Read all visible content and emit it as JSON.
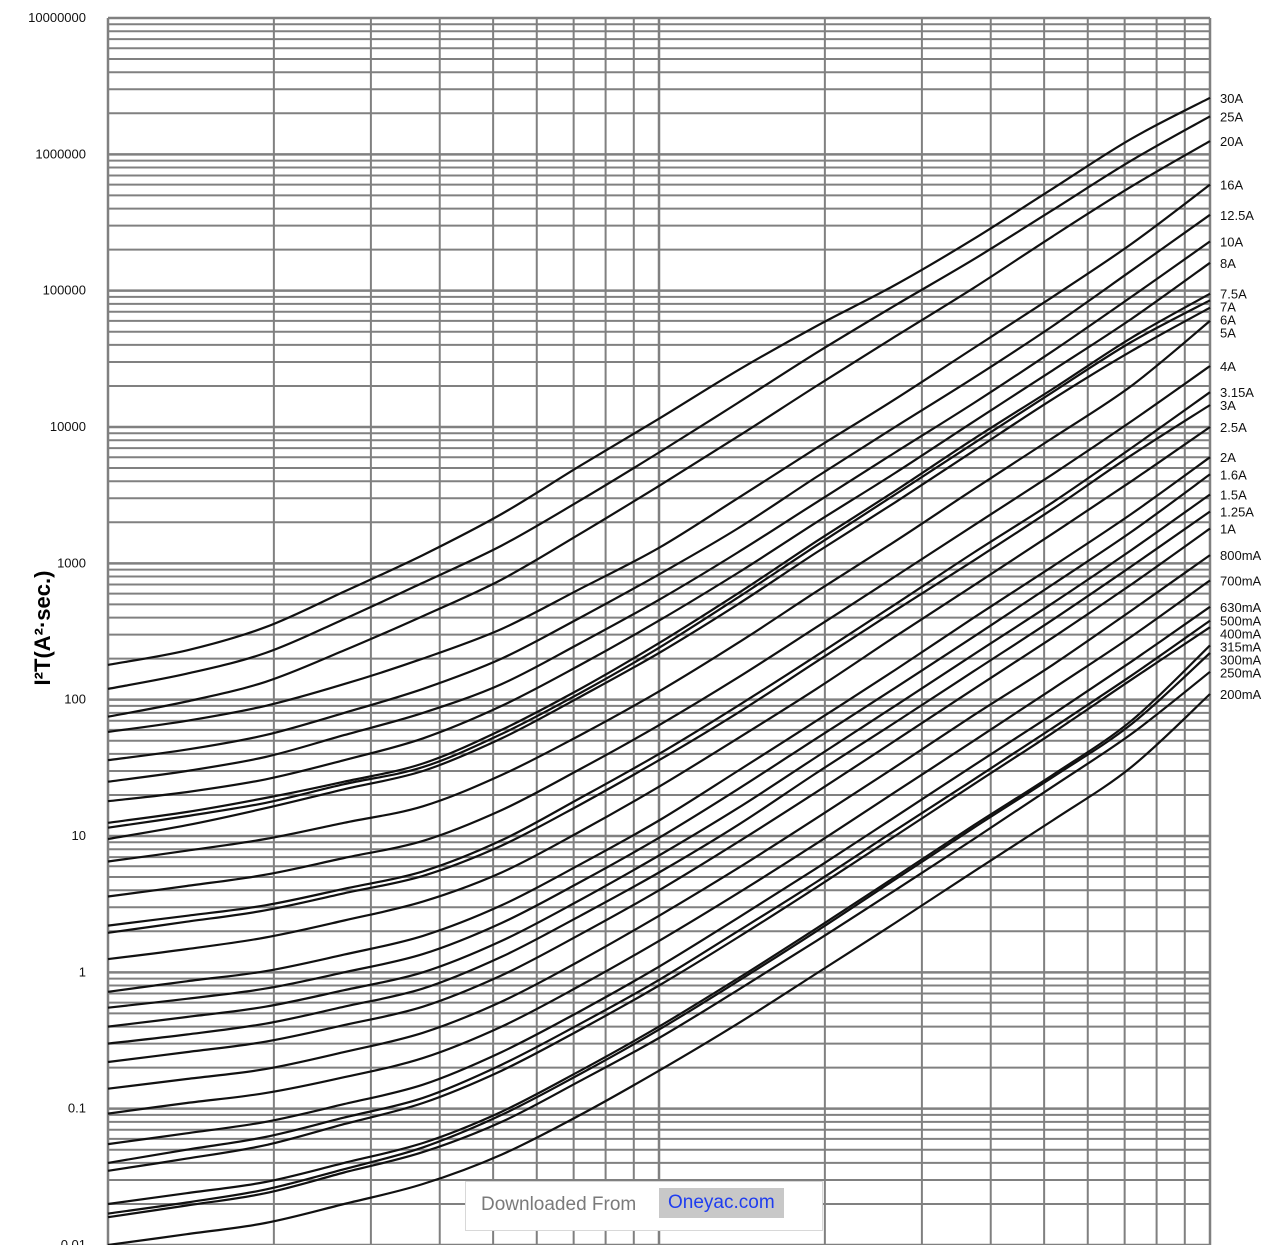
{
  "chart_data": {
    "type": "line",
    "title": "",
    "xlabel": "",
    "ylabel": "I²T(A²·sec.)",
    "y_scale": "log",
    "ylim": [
      0.01,
      10000000
    ],
    "y_tick_labels": [
      "10000000",
      "1000000",
      "100000",
      "10000",
      "1000",
      "100",
      "10",
      "1",
      "0.1",
      "0.01"
    ],
    "x_scale": "log",
    "x_decades": 2,
    "grid": true,
    "series_labels_position": "right of plot",
    "series": [
      {
        "name": "30A",
        "values": [
          180,
          230,
          340,
          620,
          1150,
          2300,
          5200,
          11500,
          26000,
          55000,
          110000,
          240000,
          560000,
          1300000,
          2600000
        ]
      },
      {
        "name": "25A",
        "values": [
          120,
          155,
          220,
          390,
          720,
          1350,
          2900,
          6500,
          15000,
          35000,
          78000,
          170000,
          390000,
          900000,
          1900000
        ]
      },
      {
        "name": "20A",
        "values": [
          75,
          97,
          135,
          230,
          410,
          760,
          1650,
          3700,
          8500,
          20000,
          46000,
          105000,
          250000,
          580000,
          1250000
        ]
      },
      {
        "name": "16A",
        "values": [
          58,
          70,
          90,
          130,
          200,
          330,
          650,
          1300,
          3000,
          7000,
          16000,
          38000,
          90000,
          220000,
          600000
        ]
      },
      {
        "name": "12.5A",
        "values": [
          36,
          43,
          55,
          80,
          120,
          200,
          400,
          830,
          1800,
          4300,
          10000,
          23000,
          55000,
          140000,
          360000
        ]
      },
      {
        "name": "10A",
        "values": [
          25,
          30,
          38,
          55,
          80,
          130,
          260,
          540,
          1200,
          2800,
          6500,
          15000,
          36000,
          90000,
          230000
        ]
      },
      {
        "name": "8A",
        "values": [
          18,
          21,
          26,
          36,
          52,
          90,
          180,
          380,
          850,
          2000,
          4600,
          11000,
          26000,
          62000,
          160000
        ]
      },
      {
        "name": "7.5A",
        "values": [
          12.5,
          15,
          19,
          25,
          34,
          60,
          120,
          260,
          600,
          1450,
          3400,
          8200,
          19000,
          45000,
          95000
        ]
      },
      {
        "name": "7A",
        "values": [
          11.5,
          14,
          17.5,
          24,
          32,
          56,
          112,
          240,
          560,
          1350,
          3200,
          7600,
          18000,
          42000,
          85000
        ]
      },
      {
        "name": "6A",
        "values": [
          9.5,
          12,
          16,
          22,
          30,
          52,
          105,
          220,
          500,
          1200,
          2800,
          6700,
          16000,
          36000,
          75000
        ]
      },
      {
        "name": "5A",
        "values": [
          6.5,
          7.8,
          9.5,
          12.5,
          16.5,
          28,
          55,
          115,
          260,
          620,
          1450,
          3500,
          8300,
          20000,
          60000
        ]
      },
      {
        "name": "4A",
        "values": [
          3.6,
          4.3,
          5.2,
          6.9,
          9.2,
          15.5,
          31,
          65,
          145,
          340,
          800,
          1900,
          4500,
          11000,
          28000
        ]
      },
      {
        "name": "3.15A",
        "values": [
          2.2,
          2.6,
          3.1,
          4.1,
          5.5,
          9.3,
          19,
          40,
          90,
          210,
          500,
          1200,
          2800,
          7000,
          18000
        ]
      },
      {
        "name": "3A",
        "values": [
          1.95,
          2.35,
          2.85,
          3.8,
          5.1,
          8.5,
          17,
          36,
          80,
          190,
          450,
          1050,
          2500,
          6200,
          14500
        ]
      },
      {
        "name": "2.5A",
        "values": [
          1.25,
          1.48,
          1.8,
          2.4,
          3.3,
          5.4,
          10.8,
          23,
          52,
          120,
          290,
          690,
          1650,
          4000,
          10000
        ]
      },
      {
        "name": "2A",
        "values": [
          0.72,
          0.86,
          1.02,
          1.35,
          1.85,
          3.1,
          6.2,
          13,
          30,
          70,
          165,
          400,
          950,
          2300,
          6000
        ]
      },
      {
        "name": "1.6A",
        "values": [
          0.55,
          0.64,
          0.76,
          1.0,
          1.36,
          2.3,
          4.6,
          9.7,
          22,
          52,
          122,
          290,
          700,
          1700,
          4500
        ]
      },
      {
        "name": "1.5A",
        "values": [
          0.4,
          0.47,
          0.56,
          0.74,
          1.0,
          1.7,
          3.4,
          7.2,
          16,
          38,
          90,
          215,
          510,
          1250,
          3200
        ]
      },
      {
        "name": "1.25A",
        "values": [
          0.3,
          0.35,
          0.42,
          0.56,
          0.76,
          1.3,
          2.6,
          5.4,
          12,
          29,
          68,
          162,
          385,
          950,
          2400
        ]
      },
      {
        "name": "1A",
        "values": [
          0.22,
          0.26,
          0.31,
          0.41,
          0.56,
          0.95,
          1.9,
          4.0,
          9.0,
          21,
          50,
          120,
          285,
          700,
          1800
        ]
      },
      {
        "name": "800mA",
        "values": [
          0.14,
          0.165,
          0.195,
          0.26,
          0.36,
          0.61,
          1.22,
          2.6,
          5.8,
          13.5,
          32,
          77,
          180,
          450,
          1150
        ]
      },
      {
        "name": "700mA",
        "values": [
          0.092,
          0.11,
          0.13,
          0.17,
          0.235,
          0.4,
          0.8,
          1.7,
          3.8,
          8.8,
          21,
          50,
          120,
          290,
          750
        ]
      },
      {
        "name": "630mA",
        "values": [
          0.055,
          0.066,
          0.08,
          0.108,
          0.15,
          0.26,
          0.52,
          1.1,
          2.5,
          5.8,
          13.8,
          33,
          78,
          190,
          480
        ]
      },
      {
        "name": "500mA",
        "values": [
          0.04,
          0.05,
          0.062,
          0.086,
          0.12,
          0.21,
          0.42,
          0.88,
          2.0,
          4.6,
          11,
          26,
          62,
          150,
          380
        ]
      },
      {
        "name": "400mA",
        "values": [
          0.035,
          0.043,
          0.054,
          0.077,
          0.11,
          0.19,
          0.38,
          0.8,
          1.8,
          4.2,
          10,
          24,
          57,
          140,
          340
        ]
      },
      {
        "name": "315mA",
        "values": [
          0.02,
          0.024,
          0.029,
          0.04,
          0.056,
          0.095,
          0.19,
          0.4,
          0.9,
          2.1,
          5.0,
          12,
          28,
          70,
          250
        ]
      },
      {
        "name": "300mA",
        "values": [
          0.017,
          0.0205,
          0.0255,
          0.036,
          0.052,
          0.09,
          0.18,
          0.38,
          0.86,
          2.0,
          4.8,
          11.5,
          27,
          66,
          220
        ]
      },
      {
        "name": "250mA",
        "values": [
          0.016,
          0.0195,
          0.024,
          0.034,
          0.048,
          0.08,
          0.16,
          0.33,
          0.74,
          1.7,
          4.0,
          9.5,
          23,
          56,
          160
        ]
      },
      {
        "name": "200mA",
        "values": [
          0.01,
          0.012,
          0.0145,
          0.02,
          0.028,
          0.046,
          0.09,
          0.19,
          0.42,
          0.98,
          2.3,
          5.5,
          13,
          32,
          110
        ]
      }
    ]
  },
  "watermark": {
    "prefix": "Downloaded From",
    "site": "Oneyac.com"
  }
}
